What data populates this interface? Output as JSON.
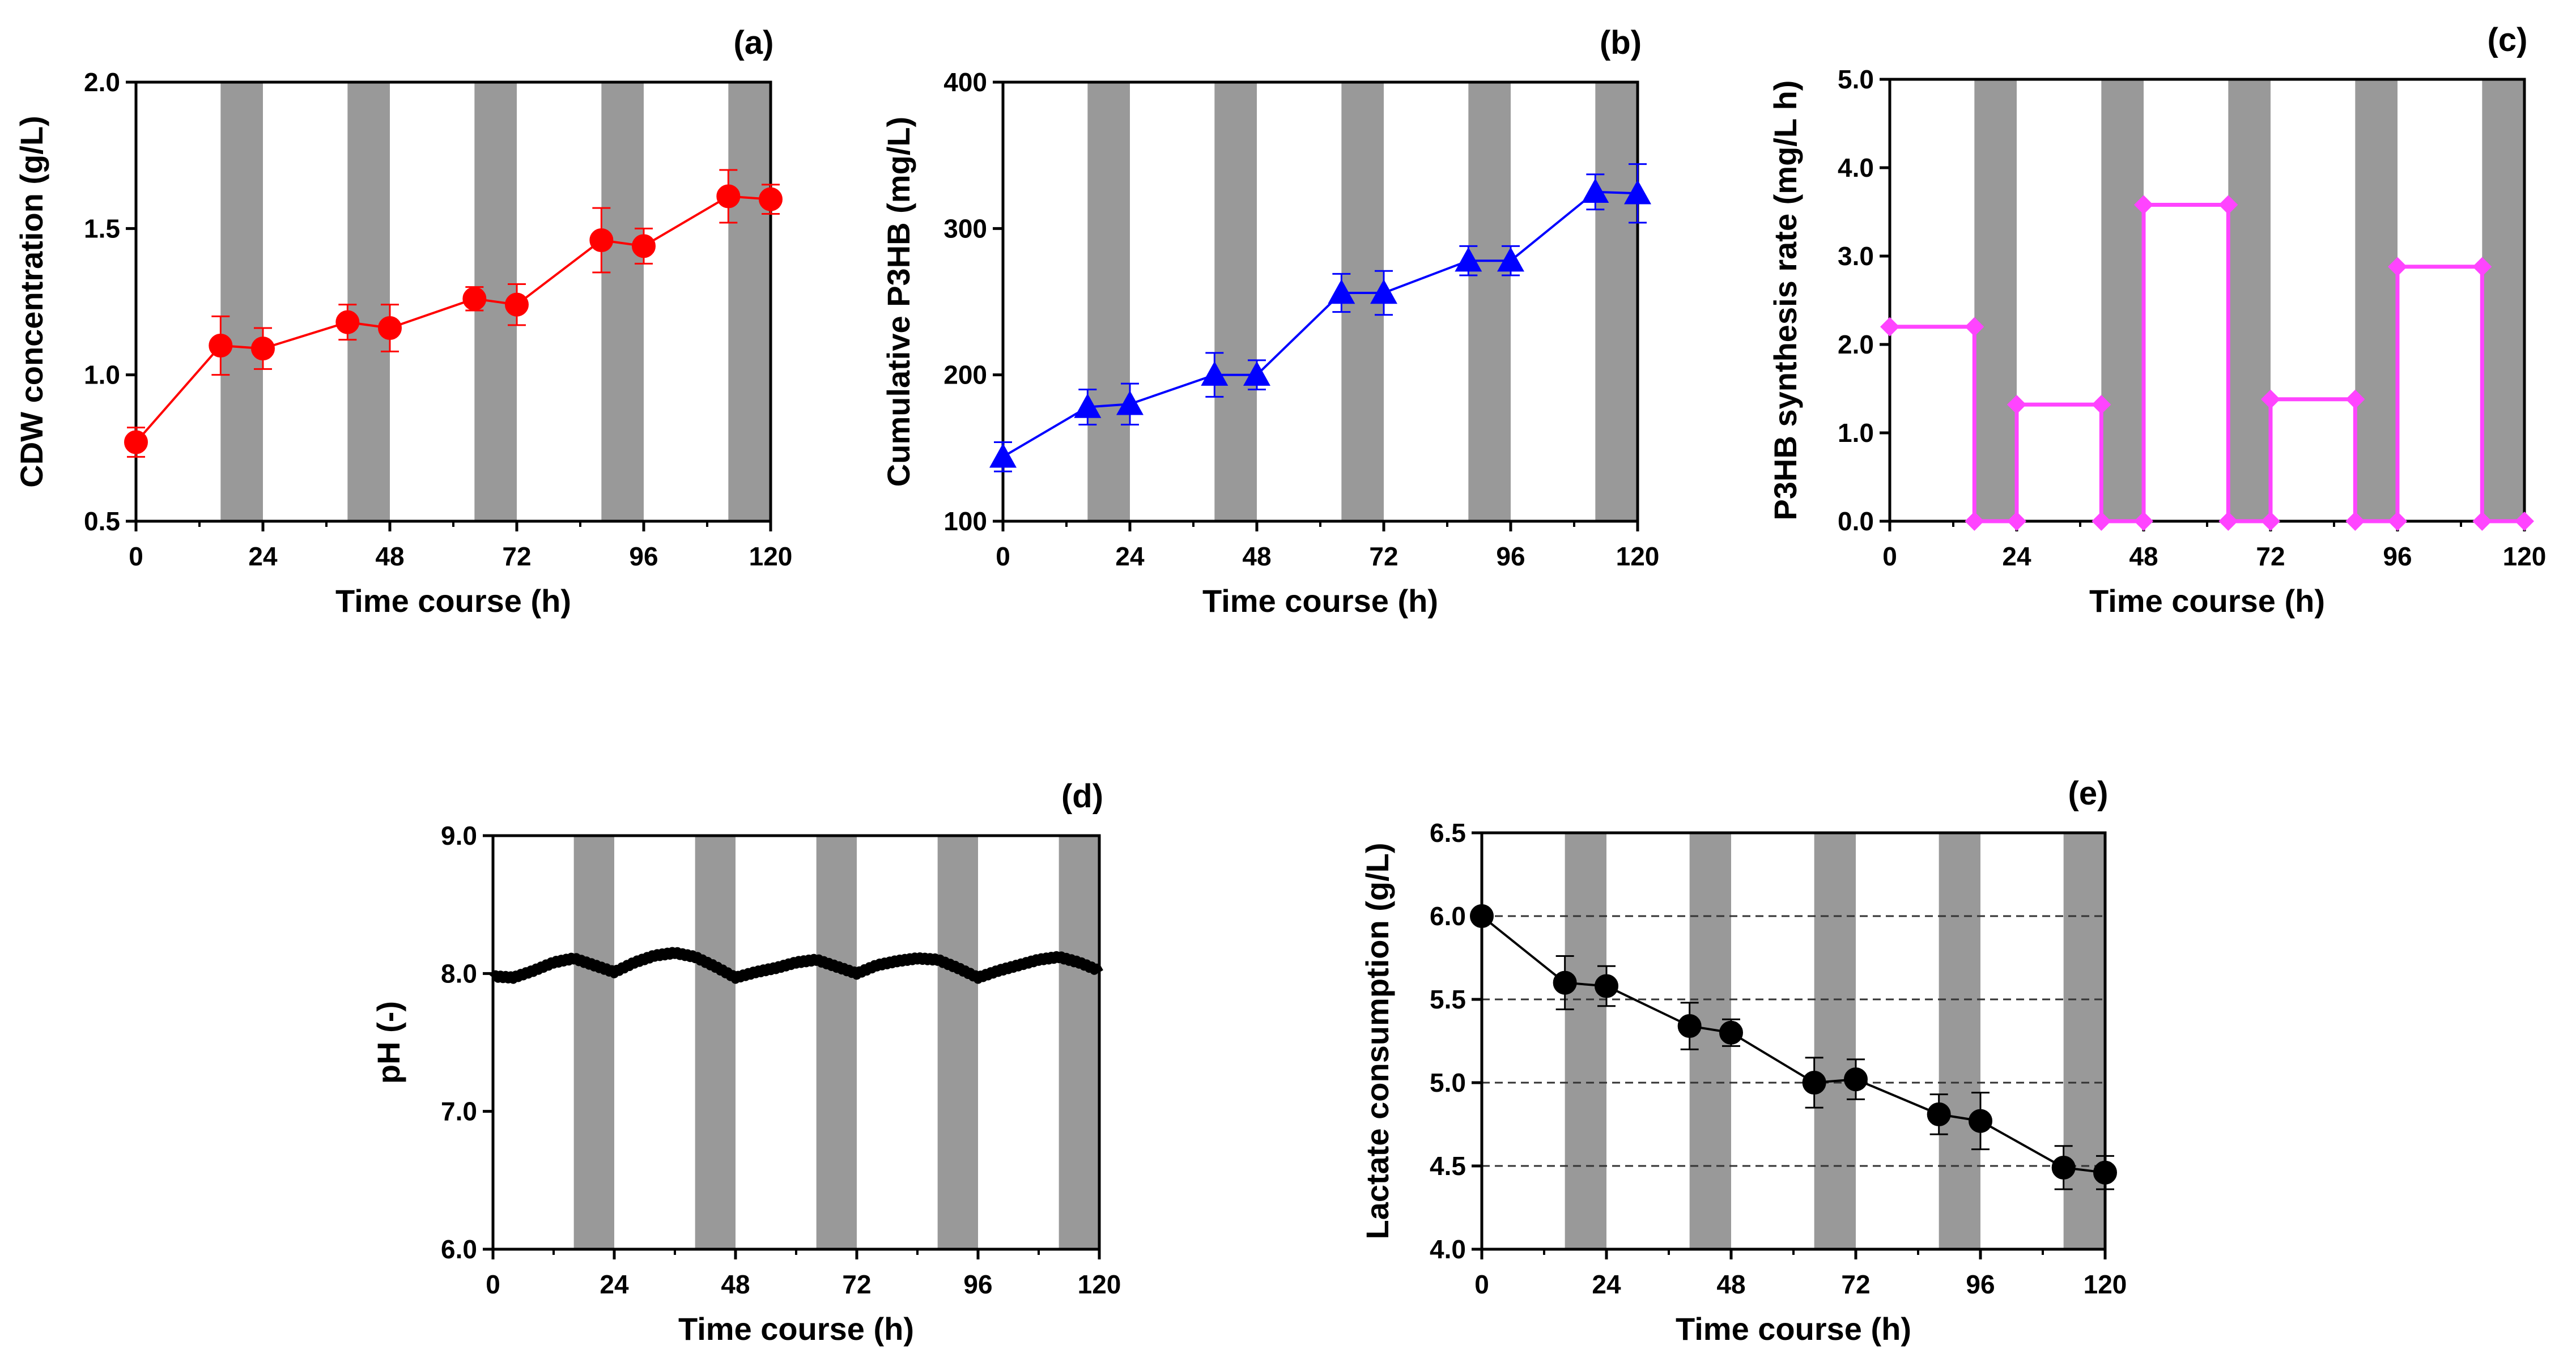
{
  "chart_data": [
    {
      "type": "line",
      "panel_label": "(a)",
      "xlabel": "Time course (h)",
      "ylabel": "CDW concentration (g/L)",
      "xlim": [
        0,
        120
      ],
      "ylim": [
        0.5,
        2.0
      ],
      "xticks": [
        0,
        24,
        48,
        72,
        96,
        120
      ],
      "xtick_labels": [
        "0",
        "24",
        "48",
        "72",
        "96",
        "120"
      ],
      "yticks": [
        0.5,
        1.0,
        1.5,
        2.0
      ],
      "ytick_labels": [
        "0.5",
        "1.0",
        "1.5",
        "2.0"
      ],
      "dark_periods": [
        [
          16,
          24
        ],
        [
          40,
          48
        ],
        [
          64,
          72
        ],
        [
          88,
          96
        ],
        [
          112,
          120
        ]
      ],
      "grid": false,
      "series": [
        {
          "name": "CDW",
          "color": "#ff0000",
          "marker": "circle",
          "x": [
            0,
            16,
            24,
            40,
            48,
            64,
            72,
            88,
            96,
            112,
            120
          ],
          "y": [
            0.77,
            1.1,
            1.09,
            1.18,
            1.16,
            1.26,
            1.24,
            1.46,
            1.44,
            1.61,
            1.6
          ],
          "err": [
            0.05,
            0.1,
            0.07,
            0.06,
            0.08,
            0.04,
            0.07,
            0.11,
            0.06,
            0.09,
            0.05
          ]
        }
      ]
    },
    {
      "type": "line",
      "panel_label": "(b)",
      "xlabel": "Time course (h)",
      "ylabel": "Cumulative P3HB (mg/L)",
      "xlim": [
        0,
        120
      ],
      "ylim": [
        100,
        400
      ],
      "xticks": [
        0,
        24,
        48,
        72,
        96,
        120
      ],
      "xtick_labels": [
        "0",
        "24",
        "48",
        "72",
        "96",
        "120"
      ],
      "yticks": [
        100,
        200,
        300,
        400
      ],
      "ytick_labels": [
        "100",
        "200",
        "300",
        "400"
      ],
      "dark_periods": [
        [
          16,
          24
        ],
        [
          40,
          48
        ],
        [
          64,
          72
        ],
        [
          88,
          96
        ],
        [
          112,
          120
        ]
      ],
      "grid": false,
      "series": [
        {
          "name": "Cumulative P3HB",
          "color": "#0000ff",
          "marker": "triangle",
          "x": [
            0,
            16,
            24,
            40,
            48,
            64,
            72,
            88,
            96,
            112,
            120
          ],
          "y": [
            144,
            178,
            180,
            200,
            200,
            256,
            256,
            278,
            278,
            325,
            324
          ],
          "err": [
            10,
            12,
            14,
            15,
            10,
            13,
            15,
            10,
            10,
            12,
            20
          ]
        }
      ]
    },
    {
      "type": "line",
      "panel_label": "(c)",
      "xlabel": "Time course (h)",
      "ylabel": "P3HB synthesis rate (mg/L h)",
      "xlim": [
        0,
        120
      ],
      "ylim": [
        0,
        5.0
      ],
      "xticks": [
        0,
        24,
        48,
        72,
        96,
        120
      ],
      "xtick_labels": [
        "0",
        "24",
        "48",
        "72",
        "96",
        "120"
      ],
      "yticks": [
        0,
        1.0,
        2.0,
        3.0,
        4.0,
        5.0
      ],
      "ytick_labels": [
        "0.0",
        "1.0",
        "2.0",
        "3.0",
        "4.0",
        "5.0"
      ],
      "dark_periods": [
        [
          16,
          24
        ],
        [
          40,
          48
        ],
        [
          64,
          72
        ],
        [
          88,
          96
        ],
        [
          112,
          120
        ]
      ],
      "grid": false,
      "series": [
        {
          "name": "P3HB synthesis rate",
          "color": "#ff44ff",
          "marker": "diamond",
          "step": true,
          "x": [
            0,
            16,
            16,
            24,
            24,
            40,
            40,
            48,
            48,
            64,
            64,
            72,
            72,
            88,
            88,
            96,
            96,
            112,
            112,
            120
          ],
          "y": [
            2.2,
            2.2,
            0,
            0,
            1.32,
            1.32,
            0,
            0,
            3.58,
            3.58,
            0,
            0,
            1.38,
            1.38,
            0,
            0,
            2.88,
            2.88,
            0,
            0
          ]
        }
      ]
    },
    {
      "type": "line",
      "panel_label": "(d)",
      "xlabel": "Time course (h)",
      "ylabel": "pH (-)",
      "xlim": [
        0,
        120
      ],
      "ylim": [
        6.0,
        9.0
      ],
      "xticks": [
        0,
        24,
        48,
        72,
        96,
        120
      ],
      "xtick_labels": [
        "0",
        "24",
        "48",
        "72",
        "96",
        "120"
      ],
      "yticks": [
        6.0,
        7.0,
        8.0,
        9.0
      ],
      "ytick_labels": [
        "6.0",
        "7.0",
        "8.0",
        "9.0"
      ],
      "dark_periods": [
        [
          16,
          24
        ],
        [
          40,
          48
        ],
        [
          64,
          72
        ],
        [
          88,
          96
        ],
        [
          112,
          120
        ]
      ],
      "grid": false,
      "series": [
        {
          "name": "pH",
          "color": "#000000",
          "marker": "none",
          "dense": true,
          "x": [
            0,
            4,
            8,
            12,
            16,
            20,
            24,
            28,
            32,
            36,
            40,
            44,
            48,
            52,
            56,
            60,
            64,
            68,
            72,
            76,
            80,
            84,
            88,
            92,
            96,
            100,
            104,
            108,
            112,
            116,
            120
          ],
          "y": [
            7.98,
            7.97,
            8.02,
            8.08,
            8.11,
            8.06,
            8.01,
            8.08,
            8.13,
            8.15,
            8.12,
            8.05,
            7.97,
            8.01,
            8.04,
            8.08,
            8.1,
            8.05,
            8.0,
            8.06,
            8.09,
            8.11,
            8.1,
            8.04,
            7.97,
            8.02,
            8.06,
            8.1,
            8.12,
            8.08,
            8.02
          ]
        }
      ]
    },
    {
      "type": "line",
      "panel_label": "(e)",
      "xlabel": "Time course (h)",
      "ylabel": "Lactate consumption (g/L)",
      "xlim": [
        0,
        120
      ],
      "ylim": [
        4.0,
        6.5
      ],
      "xticks": [
        0,
        24,
        48,
        72,
        96,
        120
      ],
      "xtick_labels": [
        "0",
        "24",
        "48",
        "72",
        "96",
        "120"
      ],
      "yticks": [
        4.0,
        4.5,
        5.0,
        5.5,
        6.0,
        6.5
      ],
      "ytick_labels": [
        "4.0",
        "4.5",
        "5.0",
        "5.5",
        "6.0",
        "6.5"
      ],
      "dark_periods": [
        [
          16,
          24
        ],
        [
          40,
          48
        ],
        [
          64,
          72
        ],
        [
          88,
          96
        ],
        [
          112,
          120
        ]
      ],
      "grid": true,
      "grid_values": [
        4.5,
        5.0,
        5.5,
        6.0
      ],
      "series": [
        {
          "name": "Lactate",
          "color": "#000000",
          "marker": "circle",
          "x": [
            0,
            16,
            24,
            40,
            48,
            64,
            72,
            88,
            96,
            112,
            120
          ],
          "y": [
            6.0,
            5.6,
            5.58,
            5.34,
            5.3,
            5.0,
            5.02,
            4.81,
            4.77,
            4.49,
            4.46
          ],
          "err": [
            0.02,
            0.16,
            0.12,
            0.14,
            0.08,
            0.15,
            0.12,
            0.12,
            0.17,
            0.13,
            0.1
          ]
        }
      ]
    }
  ]
}
